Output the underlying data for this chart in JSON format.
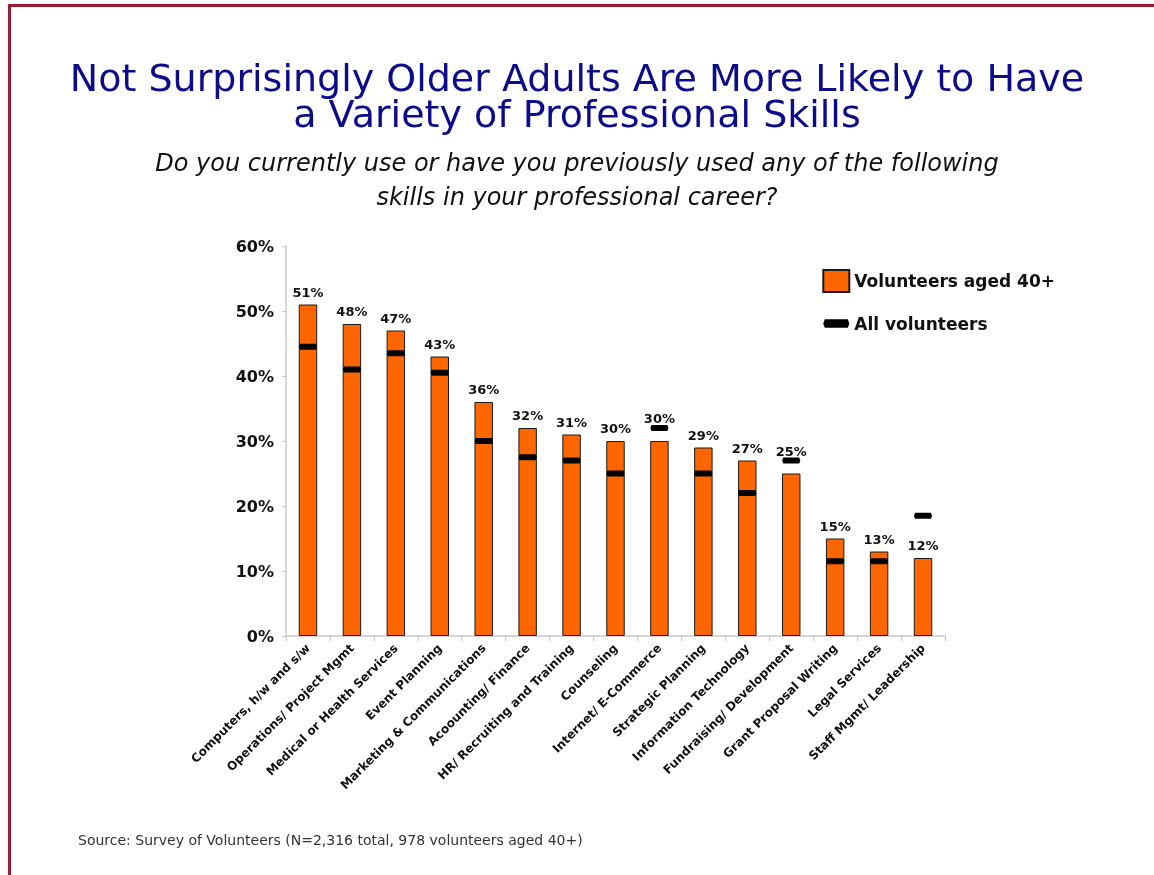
{
  "chart_data": {
    "type": "bar",
    "title": "Not Surprisingly Older Adults Are More Likely to Have a Variety of Professional Skills",
    "subtitle": "Do you currently use or have you previously used any of the following skills in your professional career?",
    "annotations": [
      "Source: Survey of Volunteers (N=2,316 total, 978 volunteers aged 40+)"
    ],
    "categories": [
      "Computers, h/w and s/w",
      "Operations/ Project Mgmt",
      "Medical or Health Services",
      "Event Planning",
      "Marketing & Communications",
      "Acoounting/ Finance",
      "HR/ Recruiting and Training",
      "Counseling",
      "Internet/ E-Commerce",
      "Strategic Planning",
      "Information Technology",
      "Fundraising/ Development",
      "Grant Proposal Writing",
      "Legal Services",
      "Staff Mgmt/ Leadership"
    ],
    "series": [
      {
        "name": "Volunteers aged 40+",
        "type": "bar",
        "color": "#ff6600",
        "values": [
          51,
          48,
          47,
          43,
          36,
          32,
          31,
          30,
          30,
          29,
          27,
          25,
          15,
          13,
          12
        ],
        "value_labels": [
          "51%",
          "48%",
          "47%",
          "43%",
          "36%",
          "32%",
          "31%",
          "30%",
          "30%",
          "29%",
          "27%",
          "25%",
          "15%",
          "13%",
          "12%"
        ]
      },
      {
        "name": "All volunteers",
        "type": "scatter",
        "color": "#000000",
        "x": [
          "Computers, h/w and s/w",
          "Operations/ Project Mgmt",
          "Medical or Health Services",
          "Event Planning",
          "Marketing & Communications",
          "Acoounting/ Finance",
          "HR/ Recruiting and Training",
          "Counseling",
          "Internet/ E-Commerce",
          "Strategic Planning",
          "Information Technology",
          "Fundraising/ Development",
          "Grant Proposal Writing",
          "Legal Services",
          "Staff Mgmt/ Leadership"
        ],
        "values": [
          44.5,
          41,
          43.5,
          40.5,
          30,
          27.5,
          27,
          25,
          32,
          25,
          22,
          27,
          11.5,
          11.5,
          18.5
        ]
      }
    ],
    "ylim": [
      0,
      60
    ],
    "yticks": [
      {
        "value": 0,
        "label": "0%"
      },
      {
        "value": 10,
        "label": "10%"
      },
      {
        "value": 20,
        "label": "20%"
      },
      {
        "value": 30,
        "label": "30%"
      },
      {
        "value": 40,
        "label": "40%"
      },
      {
        "value": 50,
        "label": "50%"
      },
      {
        "value": 60,
        "label": "60%"
      }
    ],
    "grid": false,
    "legend": "top right"
  }
}
